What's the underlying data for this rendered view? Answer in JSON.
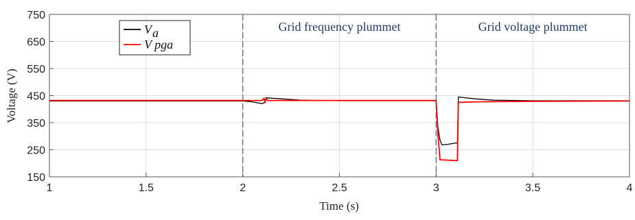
{
  "chart_data": {
    "type": "line",
    "xlabel": "Time (s)",
    "ylabel": "Voltage (V)",
    "xlim": [
      1,
      4
    ],
    "ylim": [
      150,
      750
    ],
    "x_ticks": [
      "1",
      "1.5",
      "2",
      "2.5",
      "3",
      "3.5",
      "4"
    ],
    "y_ticks": [
      "150",
      "250",
      "350",
      "450",
      "550",
      "650",
      "750"
    ],
    "grid": true,
    "legend_position": "top-left",
    "event_lines": [
      2,
      3
    ],
    "annotations": [
      {
        "text": "Grid frequency plummet",
        "x": 2.5,
        "y": 705
      },
      {
        "text": "Grid voltage plummet",
        "x": 3.5,
        "y": 705
      }
    ],
    "series": [
      {
        "name": "V_a",
        "legend_main": "V",
        "legend_sub": "a",
        "color": "#000000",
        "points": [
          [
            1.0,
            430
          ],
          [
            1.5,
            430
          ],
          [
            1.99,
            430
          ],
          [
            2.0,
            430
          ],
          [
            2.05,
            427
          ],
          [
            2.1,
            420
          ],
          [
            2.115,
            426
          ],
          [
            2.12,
            442
          ],
          [
            2.2,
            438
          ],
          [
            2.3,
            433
          ],
          [
            2.5,
            431
          ],
          [
            2.8,
            431
          ],
          [
            2.99,
            431
          ],
          [
            3.0,
            430
          ],
          [
            3.005,
            375
          ],
          [
            3.01,
            330
          ],
          [
            3.02,
            285
          ],
          [
            3.03,
            268
          ],
          [
            3.06,
            270
          ],
          [
            3.1,
            275
          ],
          [
            3.11,
            275
          ],
          [
            3.115,
            445
          ],
          [
            3.2,
            438
          ],
          [
            3.3,
            433
          ],
          [
            3.5,
            431
          ],
          [
            4.0,
            431
          ]
        ]
      },
      {
        "name": "V_pga",
        "legend_main": "V pga",
        "legend_sub": "",
        "color": "#ff0000",
        "points": [
          [
            1.0,
            432
          ],
          [
            1.5,
            432
          ],
          [
            1.99,
            432
          ],
          [
            2.0,
            432
          ],
          [
            2.1,
            432
          ],
          [
            2.11,
            440
          ],
          [
            2.115,
            424
          ],
          [
            2.12,
            438
          ],
          [
            2.13,
            432
          ],
          [
            2.5,
            432
          ],
          [
            2.99,
            432
          ],
          [
            3.0,
            432
          ],
          [
            3.01,
            300
          ],
          [
            3.02,
            213
          ],
          [
            3.05,
            212
          ],
          [
            3.1,
            210
          ],
          [
            3.11,
            210
          ],
          [
            3.115,
            425
          ],
          [
            3.2,
            427
          ],
          [
            3.5,
            429
          ],
          [
            4.0,
            430
          ]
        ]
      }
    ]
  }
}
